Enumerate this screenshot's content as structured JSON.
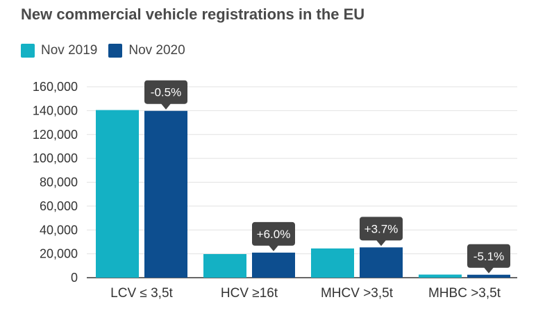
{
  "chart_data": {
    "type": "bar",
    "title": "New commercial vehicle registrations in the EU",
    "xlabel": "",
    "ylabel": "",
    "categories": [
      "LCV ≤ 3,5t",
      "HCV ≥16t",
      "MHCV >3,5t",
      "MHBC >3,5t"
    ],
    "series": [
      {
        "name": "Nov 2019",
        "color": "#14b1c4",
        "values": [
          140500,
          19800,
          24500,
          2600
        ]
      },
      {
        "name": "Nov 2020",
        "color": "#0d4e8f",
        "values": [
          139800,
          21000,
          25400,
          2470
        ]
      }
    ],
    "annotations": [
      "-0.5%",
      "+6.0%",
      "+3.7%",
      "-5.1%"
    ],
    "ylim": [
      0,
      160000
    ],
    "yticks": [
      0,
      20000,
      40000,
      60000,
      80000,
      100000,
      120000,
      140000,
      160000
    ],
    "ytick_labels": [
      "0",
      "20,000",
      "40,000",
      "60,000",
      "80,000",
      "100,000",
      "120,000",
      "140,000",
      "160,000"
    ],
    "grid": true,
    "legend_position": "top-left"
  }
}
